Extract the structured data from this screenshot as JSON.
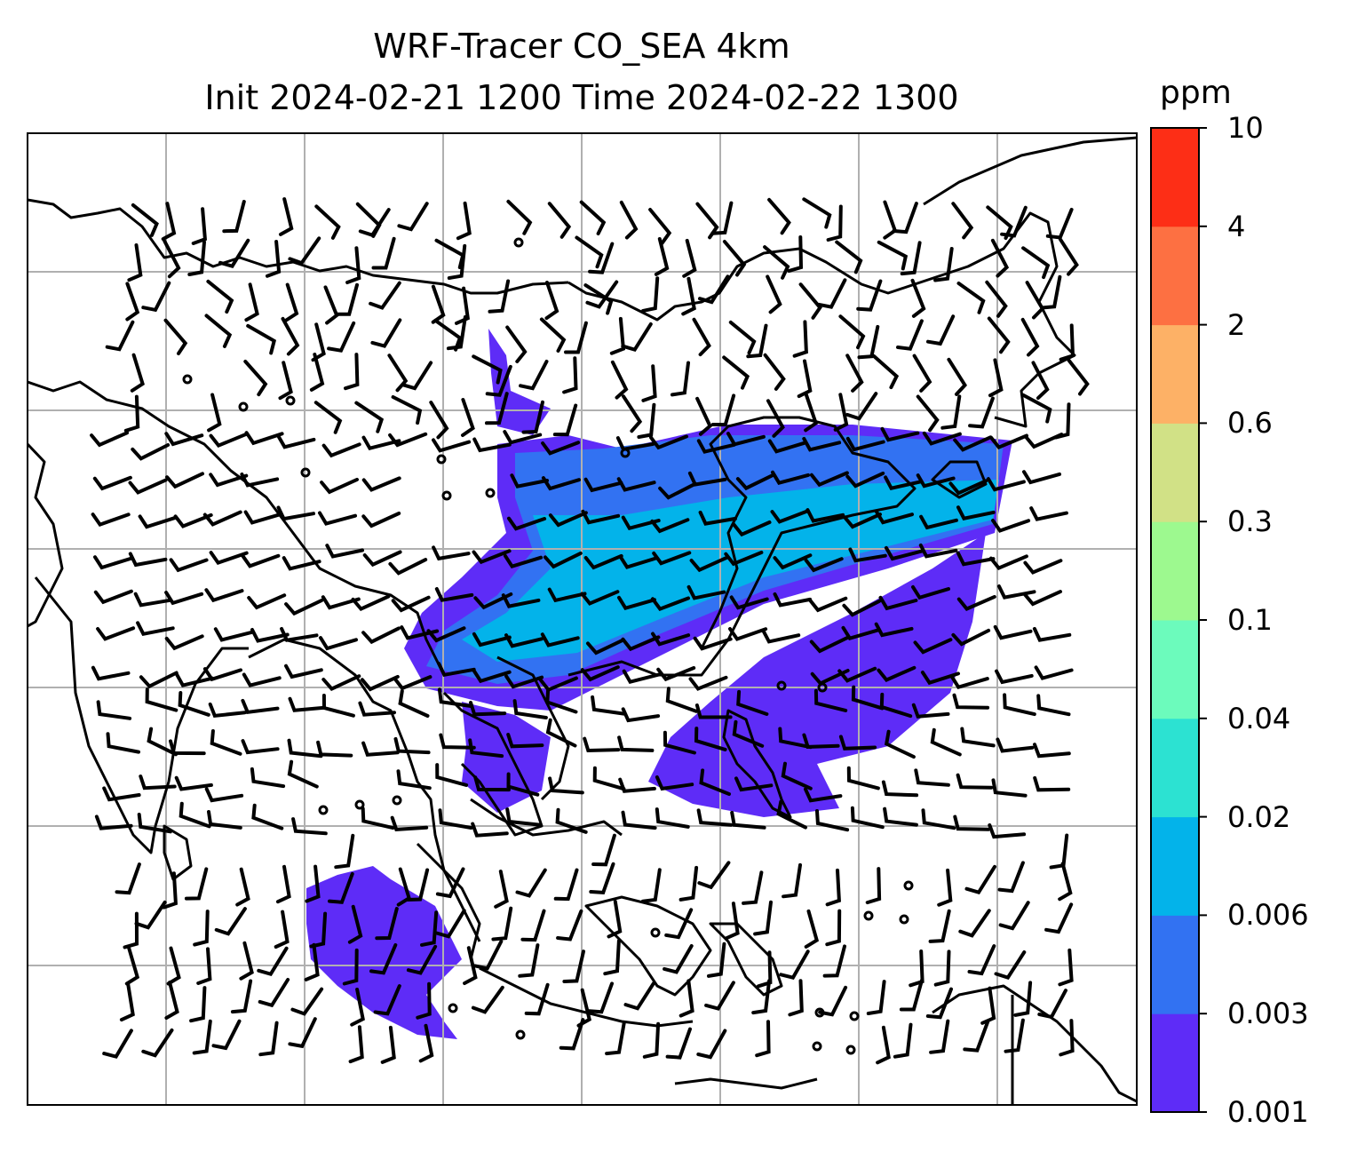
{
  "title": {
    "line1": "WRF-Tracer CO_SEA 4km",
    "line2": "Init 2024-02-21 1200 Time 2024-02-22 1300"
  },
  "colorbar": {
    "unit": "ppm",
    "levels": [
      "0.001",
      "0.003",
      "0.006",
      "0.02",
      "0.04",
      "0.1",
      "0.3",
      "0.6",
      "2",
      "4",
      "10"
    ],
    "colors": [
      "#5e2cf7",
      "#3272f2",
      "#03b3ea",
      "#2ce2d2",
      "#6cfbbc",
      "#9df98f",
      "#d1e186",
      "#fdb166",
      "#fd7042",
      "#fd2e16"
    ]
  },
  "map": {
    "tracer_colors": {
      "low": "#5e2cf7",
      "mid": "#3272f2",
      "high": "#03b3ea"
    },
    "gridlines": true,
    "coastline_color": "#000000",
    "wind_barb_color": "#000000"
  }
}
